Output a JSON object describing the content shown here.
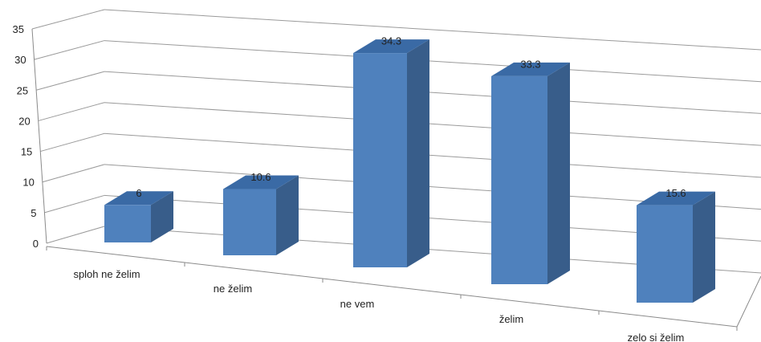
{
  "chart_data": {
    "type": "bar",
    "style": "3d-column",
    "categories": [
      "sploh ne želim",
      "ne želim",
      "ne vem",
      "želim",
      "zelo si želim"
    ],
    "values": [
      6,
      10.6,
      34.3,
      33.3,
      15.6
    ],
    "data_labels": [
      "6",
      "10.6",
      "34.3",
      "33.3",
      "15.6"
    ],
    "ylim": [
      0,
      35
    ],
    "yticks": [
      "0",
      "5",
      "10",
      "15",
      "20",
      "25",
      "30",
      "35"
    ],
    "grid": true,
    "legend": "none",
    "colors": {
      "front": "#4f81bd",
      "side": "#385d8a",
      "top": "#3a6aa5",
      "grid": "#9a9a9a"
    }
  }
}
